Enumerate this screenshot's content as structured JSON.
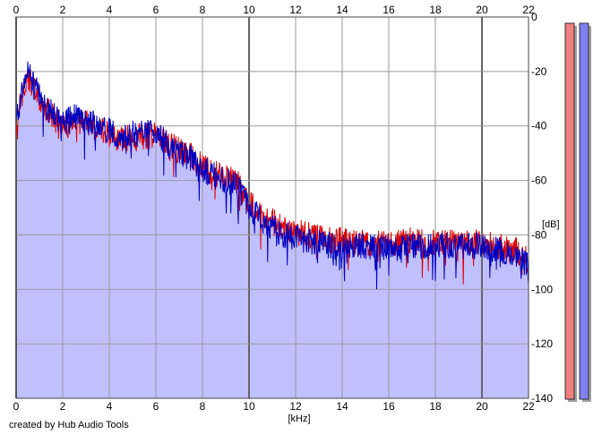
{
  "credit": "created by Hub Audio Tools",
  "chart_data": {
    "type": "area",
    "xlabel": "[kHz]",
    "ylabel": "[dB]",
    "xlim": [
      0,
      22
    ],
    "ylim": [
      -140,
      0
    ],
    "x_ticks": [
      "0",
      "2",
      "4",
      "6",
      "8",
      "10",
      "12",
      "14",
      "16",
      "18",
      "20",
      "22"
    ],
    "y_ticks": [
      "0",
      "-20",
      "-40",
      "-60",
      "-80",
      "-100",
      "-120",
      "-140"
    ],
    "grid": true,
    "x": [
      0,
      0.5,
      1,
      1.5,
      2,
      2.5,
      3,
      3.5,
      4,
      4.5,
      5,
      5.5,
      6,
      6.5,
      7,
      7.5,
      8,
      8.5,
      9,
      9.5,
      10,
      10.5,
      11,
      11.5,
      12,
      12.5,
      13,
      13.5,
      14,
      14.5,
      15,
      15.5,
      16,
      16.5,
      17,
      17.5,
      18,
      18.5,
      19,
      19.5,
      20,
      20.5,
      21,
      21.5,
      22
    ],
    "series": [
      {
        "color": "#e00000",
        "values": [
          -38,
          -22,
          -30,
          -36,
          -40,
          -38,
          -39,
          -41,
          -43,
          -45,
          -44,
          -44,
          -43,
          -46,
          -49,
          -51,
          -55,
          -57,
          -59,
          -61,
          -68,
          -72,
          -75,
          -78,
          -79,
          -80,
          -81,
          -82,
          -82,
          -83,
          -83,
          -83,
          -83,
          -83,
          -82,
          -83,
          -83,
          -83,
          -83,
          -83,
          -83,
          -84,
          -85,
          -86,
          -90
        ]
      },
      {
        "color": "#0000c0",
        "values": [
          -37,
          -20,
          -29,
          -35,
          -39,
          -37,
          -38,
          -40,
          -42,
          -44,
          -43,
          -43,
          -42,
          -47,
          -50,
          -52,
          -56,
          -58,
          -60,
          -62,
          -70,
          -74,
          -77,
          -80,
          -81,
          -82,
          -83,
          -84,
          -85,
          -84,
          -84,
          -85,
          -84,
          -85,
          -84,
          -84,
          -84,
          -84,
          -84,
          -84,
          -84,
          -85,
          -86,
          -87,
          -92
        ]
      }
    ],
    "fill_color": "#c0c0ff",
    "meters": [
      {
        "color": "#f08080"
      },
      {
        "color": "#8080f0"
      }
    ]
  }
}
